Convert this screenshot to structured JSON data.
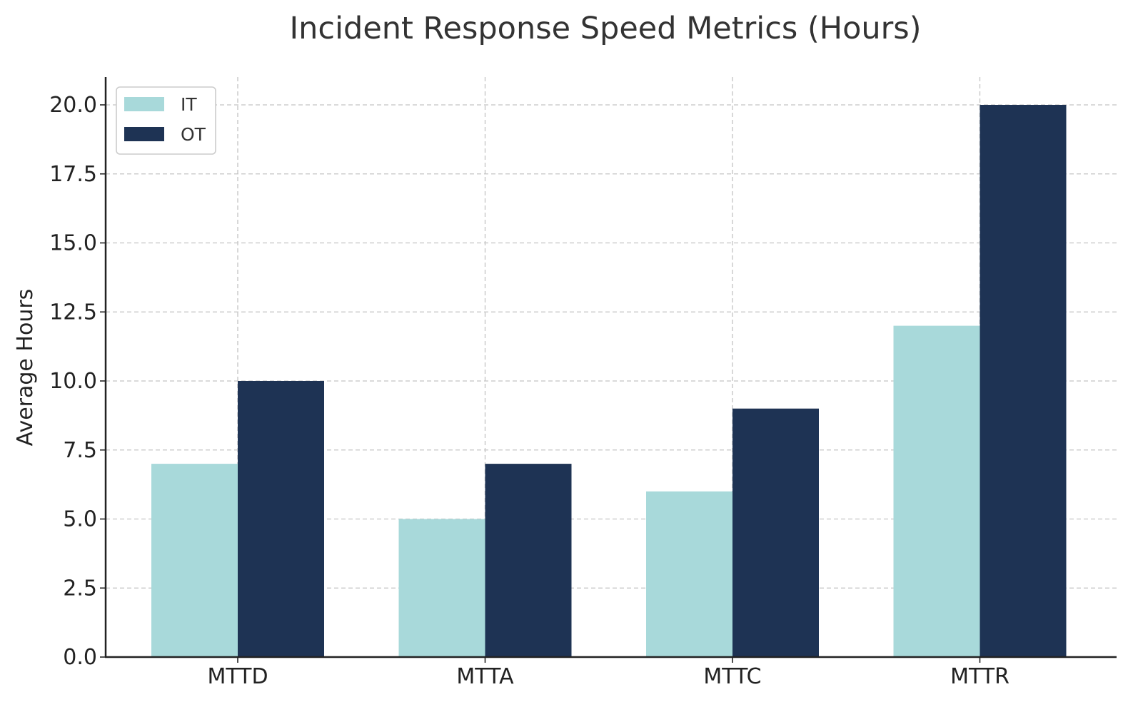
{
  "chart_data": {
    "type": "bar",
    "title": "Incident Response Speed Metrics (Hours)",
    "xlabel": "",
    "ylabel": "Average Hours",
    "categories": [
      "MTTD",
      "MTTA",
      "MTTC",
      "MTTR"
    ],
    "series": [
      {
        "name": "IT",
        "values": [
          7,
          5,
          6,
          12
        ],
        "color": "#a8d9da"
      },
      {
        "name": "OT",
        "values": [
          10,
          7,
          9,
          20
        ],
        "color": "#1e3354"
      }
    ],
    "ylim": [
      0,
      21
    ],
    "yticks": [
      "0.0",
      "2.5",
      "5.0",
      "7.5",
      "10.0",
      "12.5",
      "15.0",
      "17.5",
      "20.0"
    ],
    "grid": true,
    "legend_position": "top-left"
  }
}
